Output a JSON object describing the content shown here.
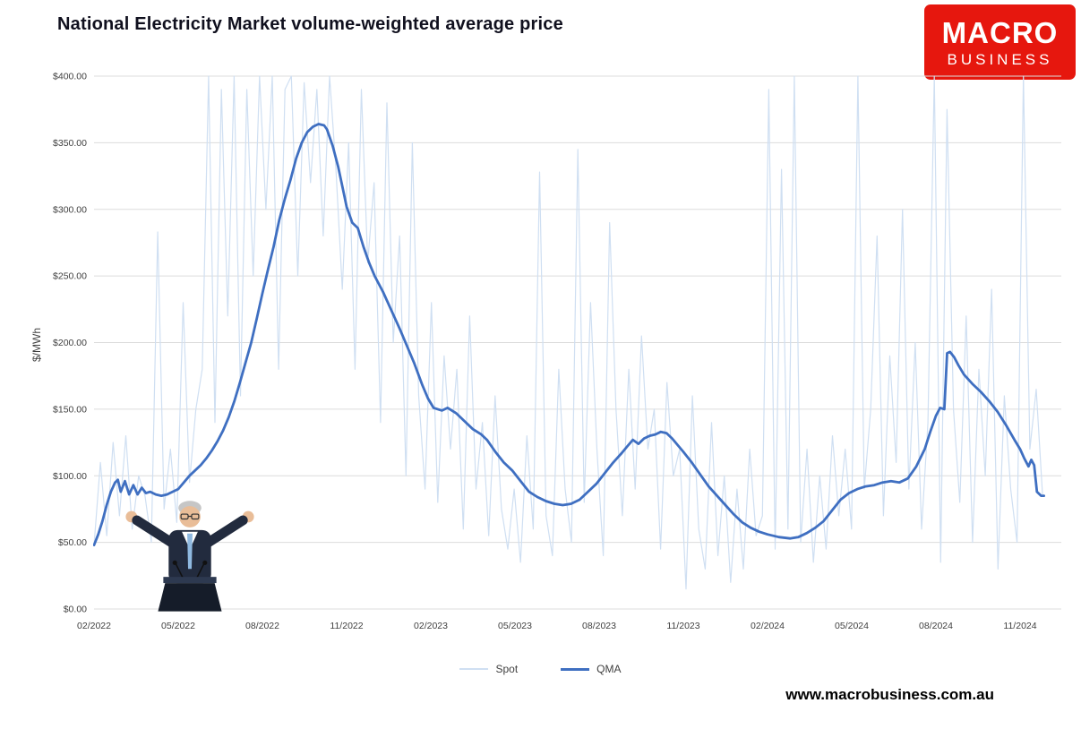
{
  "title": "National Electricity Market volume-weighted average price",
  "logo": {
    "line1": "MACRO",
    "line2": "BUSINESS",
    "bg_color": "#e6170e"
  },
  "footer": {
    "url": "www.macrobusiness.com.au"
  },
  "y_axis_title": "$/MWh",
  "legend": {
    "items": [
      {
        "label": "Spot",
        "color": "#cfdff2"
      },
      {
        "label": "QMA",
        "color": "#3f6fc1"
      }
    ]
  },
  "chart_data": {
    "type": "line",
    "title": "National Electricity Market volume-weighted average price",
    "xlabel": "",
    "ylabel": "$/MWh",
    "ylim": [
      0,
      400
    ],
    "y_tick_step": 50,
    "y_tick_labels": [
      "$0.00",
      "$50.00",
      "$100.00",
      "$150.00",
      "$200.00",
      "$250.00",
      "$300.00",
      "$350.00",
      "$400.00"
    ],
    "x_tick_labels": [
      "02/2022",
      "05/2022",
      "08/2022",
      "11/2022",
      "02/2023",
      "05/2023",
      "08/2023",
      "11/2023",
      "02/2024",
      "05/2024",
      "08/2024",
      "11/2024"
    ],
    "x_unit": "months since 02/2022, quarterly ticks",
    "grid": "horizontal",
    "legend_position": "bottom",
    "series": [
      {
        "name": "Spot",
        "color": "#cfdff2",
        "width": 1.2,
        "x_start": 0,
        "x_end": 33.8,
        "values": [
          48,
          110,
          55,
          125,
          70,
          130,
          60,
          100,
          85,
          50,
          283,
          75,
          120,
          65,
          230,
          95,
          150,
          180,
          400,
          140,
          390,
          220,
          400,
          160,
          390,
          250,
          400,
          300,
          400,
          180,
          390,
          400,
          250,
          395,
          320,
          390,
          280,
          400,
          330,
          240,
          350,
          180,
          390,
          260,
          320,
          140,
          380,
          200,
          280,
          100,
          350,
          160,
          90,
          230,
          80,
          190,
          120,
          180,
          60,
          220,
          90,
          140,
          55,
          160,
          75,
          45,
          90,
          35,
          130,
          60,
          328,
          70,
          40,
          180,
          90,
          50,
          345,
          80,
          230,
          120,
          40,
          290,
          150,
          70,
          180,
          90,
          205,
          120,
          150,
          45,
          170,
          100,
          120,
          15,
          160,
          60,
          30,
          140,
          40,
          100,
          20,
          90,
          30,
          120,
          55,
          70,
          390,
          45,
          330,
          60,
          400,
          50,
          120,
          35,
          100,
          45,
          130,
          70,
          120,
          60,
          400,
          90,
          150,
          280,
          70,
          190,
          110,
          300,
          90,
          200,
          60,
          140,
          400,
          35,
          375,
          150,
          80,
          220,
          50,
          180,
          100,
          240,
          30,
          160,
          90,
          50,
          400,
          120,
          165,
          85
        ]
      },
      {
        "name": "QMA",
        "color": "#3f6fc1",
        "width": 2.8,
        "points": [
          [
            0,
            48
          ],
          [
            0.15,
            56
          ],
          [
            0.3,
            66
          ],
          [
            0.45,
            78
          ],
          [
            0.6,
            88
          ],
          [
            0.75,
            95
          ],
          [
            0.85,
            97
          ],
          [
            0.95,
            88
          ],
          [
            1.1,
            96
          ],
          [
            1.25,
            86
          ],
          [
            1.4,
            93
          ],
          [
            1.55,
            86
          ],
          [
            1.7,
            91
          ],
          [
            1.85,
            87
          ],
          [
            2.0,
            88
          ],
          [
            2.2,
            86
          ],
          [
            2.4,
            85
          ],
          [
            2.6,
            86
          ],
          [
            2.8,
            88
          ],
          [
            3.0,
            90
          ],
          [
            3.2,
            95
          ],
          [
            3.4,
            100
          ],
          [
            3.6,
            104
          ],
          [
            3.8,
            108
          ],
          [
            4.0,
            113
          ],
          [
            4.2,
            119
          ],
          [
            4.4,
            126
          ],
          [
            4.6,
            134
          ],
          [
            4.8,
            144
          ],
          [
            5.0,
            156
          ],
          [
            5.2,
            170
          ],
          [
            5.4,
            185
          ],
          [
            5.6,
            200
          ],
          [
            5.8,
            218
          ],
          [
            6.0,
            237
          ],
          [
            6.2,
            255
          ],
          [
            6.4,
            272
          ],
          [
            6.6,
            292
          ],
          [
            6.8,
            308
          ],
          [
            7.0,
            322
          ],
          [
            7.2,
            338
          ],
          [
            7.4,
            350
          ],
          [
            7.6,
            358
          ],
          [
            7.8,
            362
          ],
          [
            8.0,
            364
          ],
          [
            8.2,
            363
          ],
          [
            8.3,
            360
          ],
          [
            8.5,
            348
          ],
          [
            8.7,
            332
          ],
          [
            8.9,
            312
          ],
          [
            9.0,
            302
          ],
          [
            9.2,
            290
          ],
          [
            9.4,
            286
          ],
          [
            9.6,
            272
          ],
          [
            9.8,
            260
          ],
          [
            10.0,
            250
          ],
          [
            10.3,
            238
          ],
          [
            10.6,
            224
          ],
          [
            10.9,
            210
          ],
          [
            11.1,
            200
          ],
          [
            11.4,
            185
          ],
          [
            11.7,
            168
          ],
          [
            11.9,
            158
          ],
          [
            12.1,
            151
          ],
          [
            12.4,
            149
          ],
          [
            12.6,
            151
          ],
          [
            12.9,
            147
          ],
          [
            13.2,
            141
          ],
          [
            13.5,
            135
          ],
          [
            13.8,
            131
          ],
          [
            14.0,
            127
          ],
          [
            14.3,
            118
          ],
          [
            14.6,
            110
          ],
          [
            14.9,
            104
          ],
          [
            15.2,
            96
          ],
          [
            15.5,
            88
          ],
          [
            15.8,
            84
          ],
          [
            16.1,
            81
          ],
          [
            16.4,
            79
          ],
          [
            16.7,
            78
          ],
          [
            17.0,
            79
          ],
          [
            17.3,
            82
          ],
          [
            17.6,
            88
          ],
          [
            17.9,
            94
          ],
          [
            18.2,
            102
          ],
          [
            18.5,
            110
          ],
          [
            18.8,
            117
          ],
          [
            19.0,
            122
          ],
          [
            19.2,
            127
          ],
          [
            19.4,
            124
          ],
          [
            19.6,
            128
          ],
          [
            19.8,
            130
          ],
          [
            20.0,
            131
          ],
          [
            20.2,
            133
          ],
          [
            20.4,
            132
          ],
          [
            20.6,
            128
          ],
          [
            20.8,
            123
          ],
          [
            21.0,
            118
          ],
          [
            21.3,
            110
          ],
          [
            21.6,
            101
          ],
          [
            21.9,
            92
          ],
          [
            22.2,
            85
          ],
          [
            22.5,
            78
          ],
          [
            22.8,
            71
          ],
          [
            23.1,
            65
          ],
          [
            23.4,
            61
          ],
          [
            23.7,
            58
          ],
          [
            24.0,
            56
          ],
          [
            24.4,
            54
          ],
          [
            24.8,
            53
          ],
          [
            25.1,
            54
          ],
          [
            25.4,
            57
          ],
          [
            25.7,
            61
          ],
          [
            26.0,
            66
          ],
          [
            26.3,
            74
          ],
          [
            26.6,
            82
          ],
          [
            26.9,
            87
          ],
          [
            27.2,
            90
          ],
          [
            27.5,
            92
          ],
          [
            27.8,
            93
          ],
          [
            28.1,
            95
          ],
          [
            28.4,
            96
          ],
          [
            28.7,
            95
          ],
          [
            29.0,
            98
          ],
          [
            29.3,
            107
          ],
          [
            29.6,
            120
          ],
          [
            29.8,
            133
          ],
          [
            30.0,
            145
          ],
          [
            30.15,
            151
          ],
          [
            30.3,
            150
          ],
          [
            30.4,
            192
          ],
          [
            30.5,
            193
          ],
          [
            30.65,
            189
          ],
          [
            30.8,
            183
          ],
          [
            31.0,
            176
          ],
          [
            31.3,
            169
          ],
          [
            31.6,
            163
          ],
          [
            31.9,
            156
          ],
          [
            32.2,
            148
          ],
          [
            32.5,
            138
          ],
          [
            32.8,
            127
          ],
          [
            33.0,
            120
          ],
          [
            33.15,
            113
          ],
          [
            33.3,
            107
          ],
          [
            33.4,
            112
          ],
          [
            33.5,
            108
          ],
          [
            33.6,
            88
          ],
          [
            33.75,
            85
          ],
          [
            33.85,
            85
          ]
        ]
      }
    ],
    "overlay": {
      "description": "photo of a politician with arms raised at a podium, lower-left of plot"
    }
  }
}
